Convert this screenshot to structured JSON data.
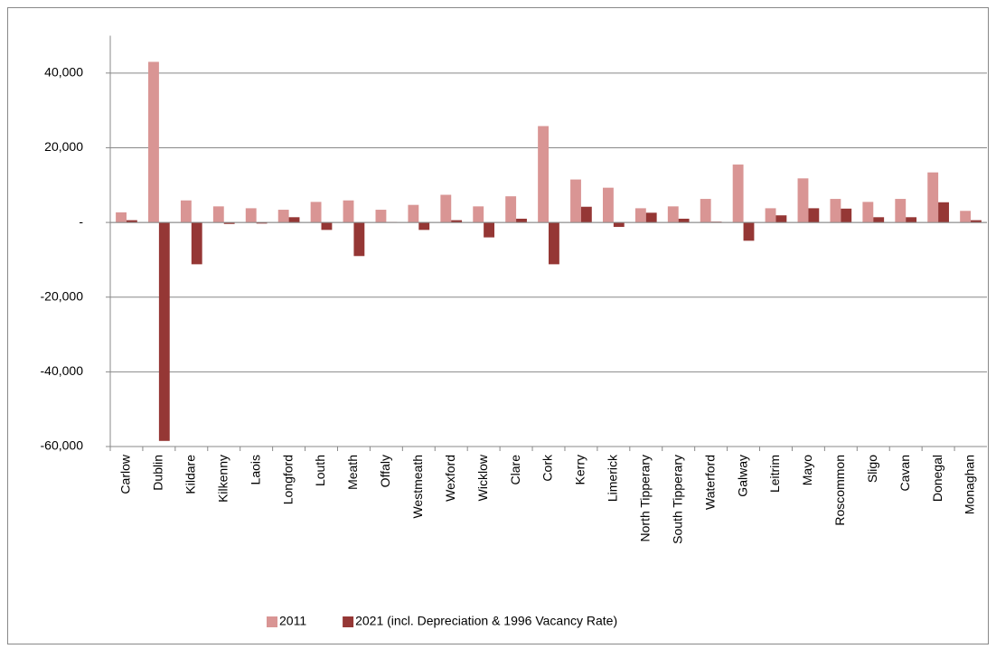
{
  "chart_data": {
    "type": "bar",
    "categories": [
      "Carlow",
      "Dublin",
      "Kildare",
      "Kilkenny",
      "Laois",
      "Longford",
      "Louth",
      "Meath",
      "Offaly",
      "Westmeath",
      "Wexford",
      "Wicklow",
      "Clare",
      "Cork",
      "Kerry",
      "Limerick",
      "North Tipperary",
      "South Tipperary",
      "Waterford",
      "Galway",
      "Leitrim",
      "Mayo",
      "Roscommon",
      "Sligo",
      "Cavan",
      "Donegal",
      "Monaghan"
    ],
    "series": [
      {
        "name": "2011",
        "color": "#d99594",
        "values": [
          2700,
          43000,
          5900,
          4300,
          3800,
          3400,
          5500,
          5900,
          3400,
          4700,
          7400,
          4300,
          7000,
          25800,
          11500,
          9300,
          3800,
          4300,
          6300,
          15500,
          3800,
          11800,
          6300,
          5500,
          6300,
          13400,
          3100
        ]
      },
      {
        "name": "2021 (incl. Depreciation & 1996  Vacancy Rate)",
        "color": "#953735",
        "values": [
          600,
          -58500,
          -11200,
          -400,
          -300,
          1400,
          -2000,
          -9000,
          100,
          -2000,
          600,
          -4000,
          1000,
          -11200,
          4200,
          -1200,
          2600,
          1000,
          200,
          -4900,
          1900,
          3800,
          3700,
          1400,
          1400,
          5400,
          600
        ]
      }
    ],
    "ylim": [
      -60000,
      50000
    ],
    "yticks": [
      {
        "value": -60000,
        "label": "-60,000"
      },
      {
        "value": -40000,
        "label": "-40,000"
      },
      {
        "value": -20000,
        "label": "-20,000"
      },
      {
        "value": 0,
        "label": "-"
      },
      {
        "value": 20000,
        "label": "20,000"
      },
      {
        "value": 40000,
        "label": "40,000"
      }
    ],
    "grid": true,
    "legend": "bottom"
  }
}
